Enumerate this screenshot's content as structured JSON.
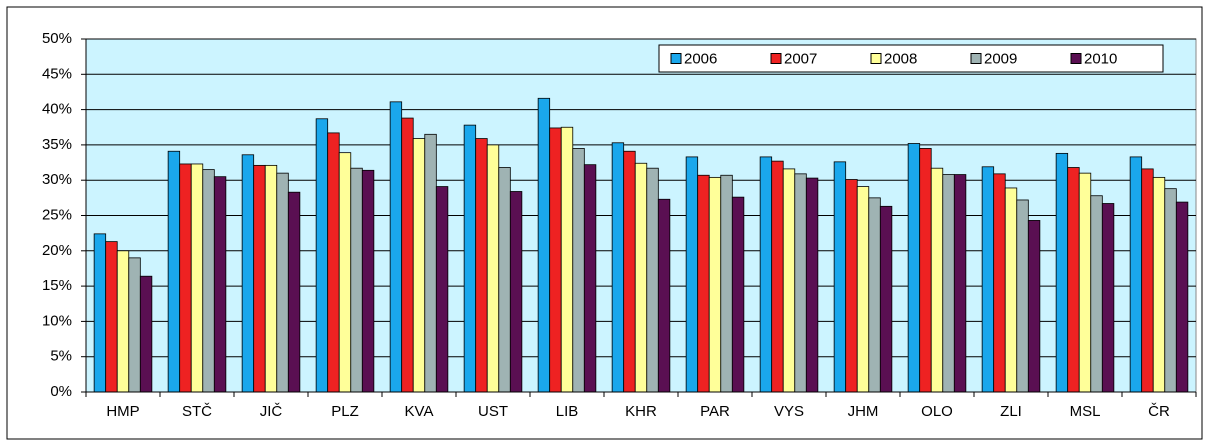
{
  "chart_data": {
    "type": "bar",
    "categories": [
      "HMP",
      "STČ",
      "JIČ",
      "PLZ",
      "KVA",
      "UST",
      "LIB",
      "KHR",
      "PAR",
      "VYS",
      "JHM",
      "OLO",
      "ZLI",
      "MSL",
      "ČR"
    ],
    "series": [
      {
        "name": "2006",
        "color": "#1aa7ec",
        "values": [
          22.4,
          34.1,
          33.6,
          38.7,
          41.1,
          37.8,
          41.6,
          35.3,
          33.3,
          33.3,
          32.6,
          35.2,
          31.9,
          33.8,
          33.3
        ]
      },
      {
        "name": "2007",
        "color": "#ee2222",
        "values": [
          21.3,
          32.3,
          32.1,
          36.7,
          38.8,
          35.9,
          37.4,
          34.1,
          30.7,
          32.7,
          30.1,
          34.5,
          30.9,
          31.8,
          31.6
        ]
      },
      {
        "name": "2008",
        "color": "#ffff99",
        "values": [
          20.0,
          32.3,
          32.1,
          33.9,
          35.9,
          35.0,
          37.5,
          32.4,
          30.4,
          31.6,
          29.1,
          31.7,
          28.9,
          31.0,
          30.4
        ]
      },
      {
        "name": "2009",
        "color": "#9fb3b3",
        "values": [
          19.0,
          31.5,
          31.0,
          31.7,
          36.5,
          31.8,
          34.5,
          31.7,
          30.7,
          30.9,
          27.5,
          30.8,
          27.2,
          27.8,
          28.8
        ]
      },
      {
        "name": "2010",
        "color": "#5a0f52",
        "values": [
          16.4,
          30.5,
          28.3,
          31.4,
          29.1,
          28.4,
          32.2,
          27.3,
          27.6,
          30.3,
          26.3,
          30.8,
          24.3,
          26.7,
          26.9
        ]
      }
    ],
    "ylim": [
      0,
      50
    ],
    "yticks": [
      {
        "value": 0,
        "label": "0%"
      },
      {
        "value": 5,
        "label": "5%"
      },
      {
        "value": 10,
        "label": "10%"
      },
      {
        "value": 15,
        "label": "15%"
      },
      {
        "value": 20,
        "label": "20%"
      },
      {
        "value": 25,
        "label": "25%"
      },
      {
        "value": 30,
        "label": "30%"
      },
      {
        "value": 35,
        "label": "35%"
      },
      {
        "value": 40,
        "label": "40%"
      },
      {
        "value": 45,
        "label": "45%"
      },
      {
        "value": 50,
        "label": "50%"
      }
    ],
    "grid": true,
    "legend": "top-right"
  }
}
